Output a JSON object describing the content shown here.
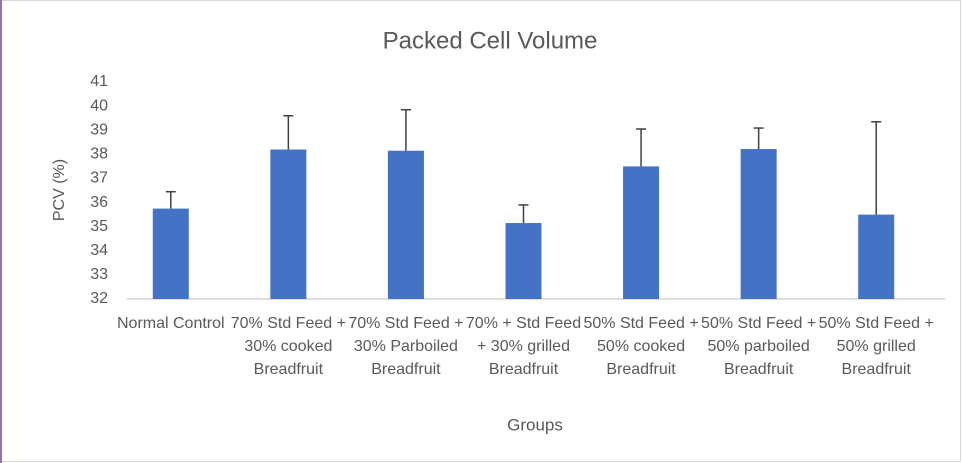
{
  "chart_data": {
    "type": "bar",
    "title": "Packed Cell Volume",
    "x_label": "Groups",
    "y_label": "PCV (%)",
    "categories": [
      "Normal Control",
      "70% Std Feed + 30% cooked Breadfruit",
      "70% Std Feed + 30% Parboiled Breadfruit",
      "70% + Std Feed + 30% grilled Breadfruit",
      "50% Std Feed + 50% cooked Breadfruit",
      "50% Std Feed + 50% parboiled Breadfruit",
      "50% Std Feed + 50% grilled Breadfruit"
    ],
    "values": [
      35.75,
      38.2,
      38.15,
      35.15,
      37.5,
      38.22,
      35.5
    ],
    "errors": [
      0.7,
      1.4,
      1.7,
      0.75,
      1.55,
      0.87,
      3.85
    ],
    "color": "#4472c4",
    "ylim": [
      32,
      41
    ],
    "yticks": [
      32,
      33,
      34,
      35,
      36,
      37,
      38,
      39,
      40,
      41
    ],
    "grid": false
  }
}
